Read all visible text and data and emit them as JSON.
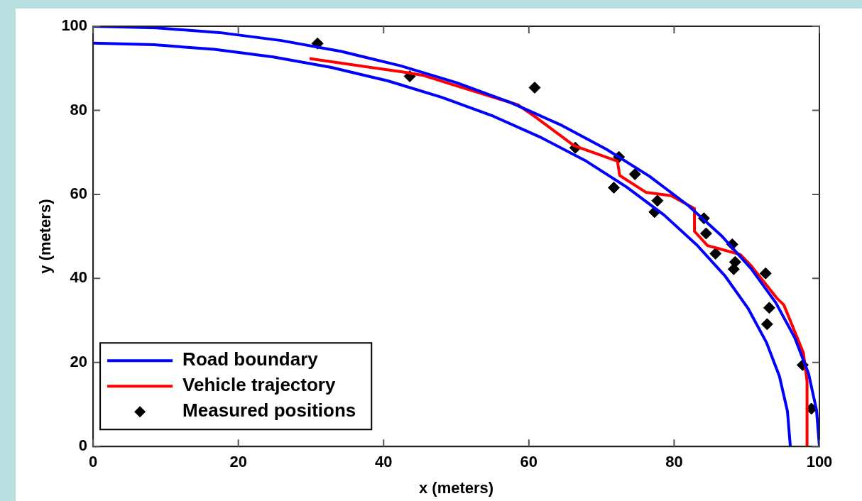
{
  "chart_data": {
    "type": "line",
    "xlabel": "x (meters)",
    "ylabel": "y (meters)",
    "xlim": [
      0,
      100
    ],
    "ylim": [
      0,
      100
    ],
    "xticks": [
      0,
      20,
      40,
      60,
      80,
      100
    ],
    "yticks": [
      0,
      20,
      40,
      60,
      80,
      100
    ],
    "grid": false,
    "legend": "bottom left",
    "series": [
      {
        "name": "Road boundary",
        "color": "#0000ff",
        "marker": "none",
        "x": [
          0,
          8.7,
          17.4,
          25.9,
          34.2,
          42.3,
          50,
          57.4,
          64.3,
          70.7,
          76.6,
          81.9,
          86.6,
          90.6,
          94.0,
          96.6,
          98.5,
          99.6,
          100
        ],
        "values": [
          100,
          99.6,
          98.5,
          96.6,
          94.0,
          90.6,
          86.6,
          81.9,
          76.6,
          70.7,
          64.3,
          57.4,
          50,
          42.3,
          34.2,
          25.9,
          17.4,
          8.7,
          0
        ]
      },
      {
        "color": "#0000ff",
        "marker": "none",
        "x": [
          0,
          8.4,
          16.7,
          24.8,
          32.8,
          40.6,
          48,
          55.1,
          61.7,
          67.9,
          73.5,
          78.6,
          83.1,
          87.0,
          90.2,
          92.7,
          94.5,
          95.6,
          96
        ],
        "values": [
          96,
          95.6,
          94.5,
          92.7,
          90.2,
          87.0,
          83.1,
          78.6,
          73.5,
          67.9,
          61.7,
          55.1,
          48,
          40.6,
          32.8,
          24.8,
          16.7,
          8.4,
          0
        ]
      },
      {
        "name": "Vehicle trajectory",
        "color": "#ff0000",
        "marker": "none",
        "x": [
          29.8,
          42.7,
          45.5,
          49.0,
          58.5,
          60.9,
          66.2,
          67.0,
          72.2,
          72.5,
          76.1,
          79.6,
          82.8,
          82.8,
          84.6,
          89.1,
          90.5,
          94.1,
          95.1,
          97.8,
          98.3,
          98.3
        ],
        "values": [
          92.3,
          89.1,
          88.3,
          86.4,
          81.3,
          78.4,
          71.6,
          71.1,
          67.9,
          64.5,
          60.5,
          59.7,
          56.6,
          51.2,
          47.8,
          45.7,
          43.2,
          35.4,
          33.7,
          22.3,
          15.5,
          0
        ]
      },
      {
        "name": "Measured positions",
        "type": "scatter",
        "color": "#000000",
        "marker": "diamond",
        "x": [
          30.9,
          43.6,
          60.8,
          66.4,
          72.4,
          74.6,
          71.7,
          77.7,
          77.3,
          84.1,
          84.4,
          88.0,
          85.7,
          88.4,
          88.2,
          92.6,
          93.1,
          92.8,
          97.7,
          98.9
        ],
        "values": [
          95.9,
          88.1,
          85.4,
          71.1,
          68.9,
          64.8,
          61.6,
          58.5,
          55.8,
          54.3,
          50.7,
          48.1,
          45.9,
          43.9,
          42.2,
          41.2,
          33.0,
          29.1,
          19.4,
          9.0
        ]
      }
    ]
  }
}
